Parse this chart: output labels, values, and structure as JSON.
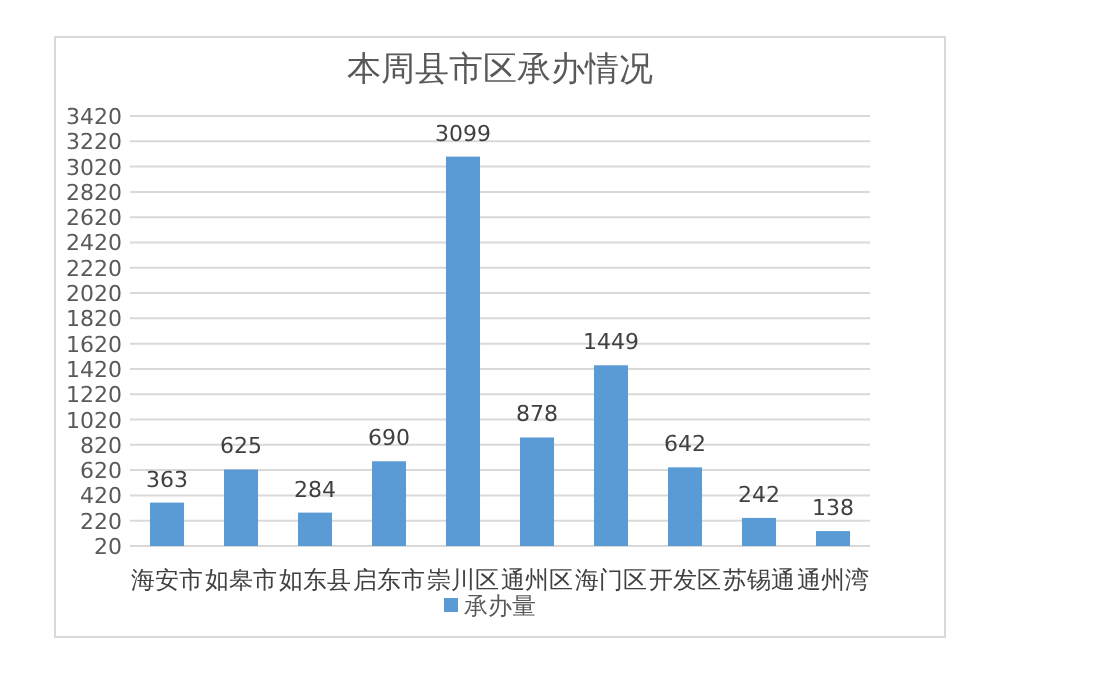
{
  "chart_data": {
    "type": "bar",
    "title": "本周县市区承办情况",
    "categories": [
      "海安市",
      "如皋市",
      "如东县",
      "启东市",
      "崇川区",
      "通州区",
      "海门区",
      "开发区",
      "苏锡通",
      "通州湾"
    ],
    "series": [
      {
        "name": "承办量",
        "color": "#5b9bd5",
        "values": [
          363,
          625,
          284,
          690,
          3099,
          878,
          1449,
          642,
          242,
          138
        ]
      }
    ],
    "ylim": [
      20,
      3420
    ],
    "yticks": [
      20,
      220,
      420,
      620,
      820,
      1020,
      1220,
      1420,
      1620,
      1820,
      2020,
      2220,
      2420,
      2620,
      2820,
      3020,
      3220,
      3420
    ],
    "grid": "y",
    "legend": "bottom",
    "data_labels": true
  }
}
